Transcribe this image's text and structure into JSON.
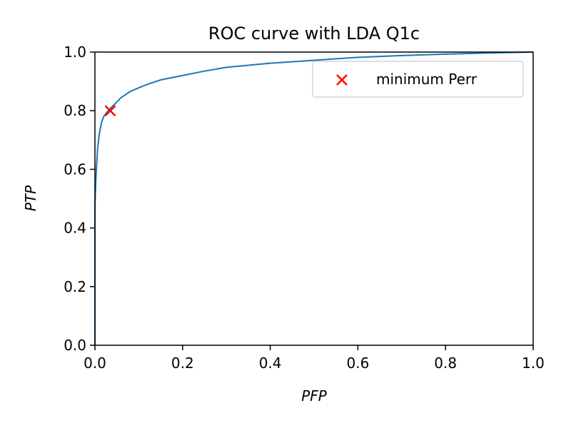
{
  "chart_data": {
    "type": "line",
    "title": "ROC curve with LDA Q1c",
    "xlabel": "PFP",
    "ylabel": "PTP",
    "xlim": [
      0.0,
      1.0
    ],
    "ylim": [
      0.0,
      1.0
    ],
    "xticks": [
      "0.0",
      "0.2",
      "0.4",
      "0.6",
      "0.8",
      "1.0"
    ],
    "yticks": [
      "0.0",
      "0.2",
      "0.4",
      "0.6",
      "0.8",
      "1.0"
    ],
    "grid": false,
    "legend_position": "upper-right",
    "series": [
      {
        "color": "#1f77b4",
        "x": [
          0.0,
          0.0,
          0.002,
          0.004,
          0.006,
          0.01,
          0.015,
          0.02,
          0.03,
          0.04,
          0.05,
          0.06,
          0.07,
          0.08,
          0.1,
          0.12,
          0.15,
          0.2,
          0.25,
          0.3,
          0.4,
          0.5,
          0.6,
          0.7,
          0.8,
          0.9,
          1.0
        ],
        "y": [
          0.0,
          0.47,
          0.56,
          0.62,
          0.67,
          0.72,
          0.76,
          0.78,
          0.8,
          0.815,
          0.83,
          0.845,
          0.855,
          0.865,
          0.878,
          0.89,
          0.905,
          0.92,
          0.935,
          0.948,
          0.962,
          0.972,
          0.982,
          0.988,
          0.993,
          0.997,
          1.0
        ]
      },
      {
        "name": "minimum Perr",
        "type": "scatter",
        "marker": "x",
        "color": "#ff0000",
        "x": [
          0.035
        ],
        "y": [
          0.8
        ]
      }
    ]
  }
}
